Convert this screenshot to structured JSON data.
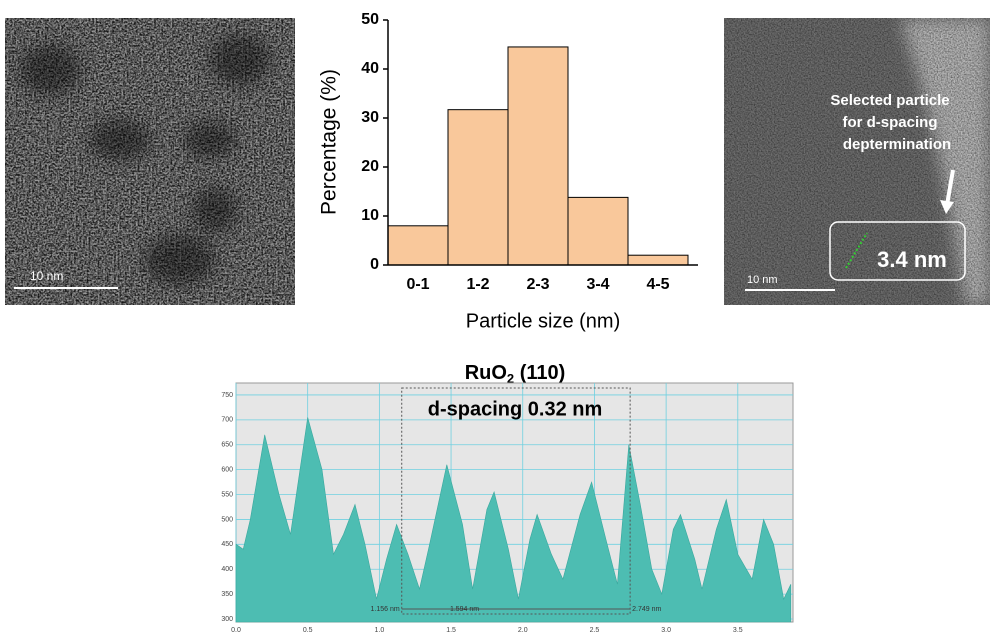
{
  "images": {
    "left": {
      "scale_bar": "10 nm"
    },
    "right": {
      "annotation": [
        "Selected particle",
        "for d-spacing",
        "deptermination"
      ],
      "measurement": "3.4 nm",
      "scale_bar": "10 nm"
    }
  },
  "chart_data": [
    {
      "type": "bar",
      "x_label": "Particle size (nm)",
      "y_label": "Percentage (%)",
      "categories": [
        "0-1",
        "1-2",
        "2-3",
        "3-4",
        "4-5"
      ],
      "values": [
        8,
        31.7,
        44.5,
        13.8,
        2
      ],
      "color": "#f9c89b",
      "ylim": [
        0,
        50
      ],
      "yticks": [
        0,
        10,
        20,
        30,
        40,
        50
      ]
    },
    {
      "type": "area",
      "title_parts": [
        "RuO",
        "2",
        " (110)"
      ],
      "subtitle": "d-spacing 0.32 nm",
      "x": [
        0,
        0.05,
        0.1,
        0.2,
        0.3,
        0.38,
        0.5,
        0.6,
        0.68,
        0.75,
        0.83,
        0.9,
        0.98,
        1.05,
        1.12,
        1.2,
        1.28,
        1.35,
        1.47,
        1.58,
        1.65,
        1.75,
        1.8,
        1.9,
        1.97,
        2.05,
        2.1,
        2.2,
        2.28,
        2.4,
        2.48,
        2.58,
        2.66,
        2.74,
        2.82,
        2.9,
        2.97,
        3.05,
        3.1,
        3.2,
        3.25,
        3.35,
        3.42,
        3.5,
        3.6,
        3.68,
        3.75,
        3.82,
        3.87
      ],
      "values": [
        450,
        440,
        500,
        670,
        550,
        470,
        705,
        600,
        430,
        470,
        530,
        450,
        340,
        420,
        490,
        430,
        360,
        450,
        610,
        490,
        360,
        520,
        555,
        440,
        340,
        460,
        510,
        430,
        380,
        510,
        575,
        460,
        370,
        650,
        530,
        400,
        350,
        480,
        510,
        420,
        360,
        480,
        540,
        430,
        380,
        500,
        450,
        340,
        370
      ],
      "color": "#4dbdb2",
      "background": "#e6e6e6",
      "grid": true,
      "xlim": [
        0,
        3.885
      ],
      "ylim": [
        294,
        774
      ],
      "xticks": [
        {
          "value": 0,
          "label": "0.0"
        },
        0.5,
        {
          "value": 1,
          "label": "1.0"
        },
        1.5,
        {
          "value": 2,
          "label": "2.0"
        },
        2.5,
        {
          "value": 3,
          "label": "3.0"
        },
        3.5
      ],
      "yticks": [
        300,
        350,
        400,
        450,
        500,
        550,
        600,
        650,
        700,
        750
      ],
      "annotations": [
        {
          "value": 1.156,
          "label": "1.156 nm"
        },
        {
          "value": 1.594,
          "label": "1.594 nm"
        },
        {
          "value": 2.749,
          "label": "2.749 nm"
        }
      ]
    }
  ]
}
